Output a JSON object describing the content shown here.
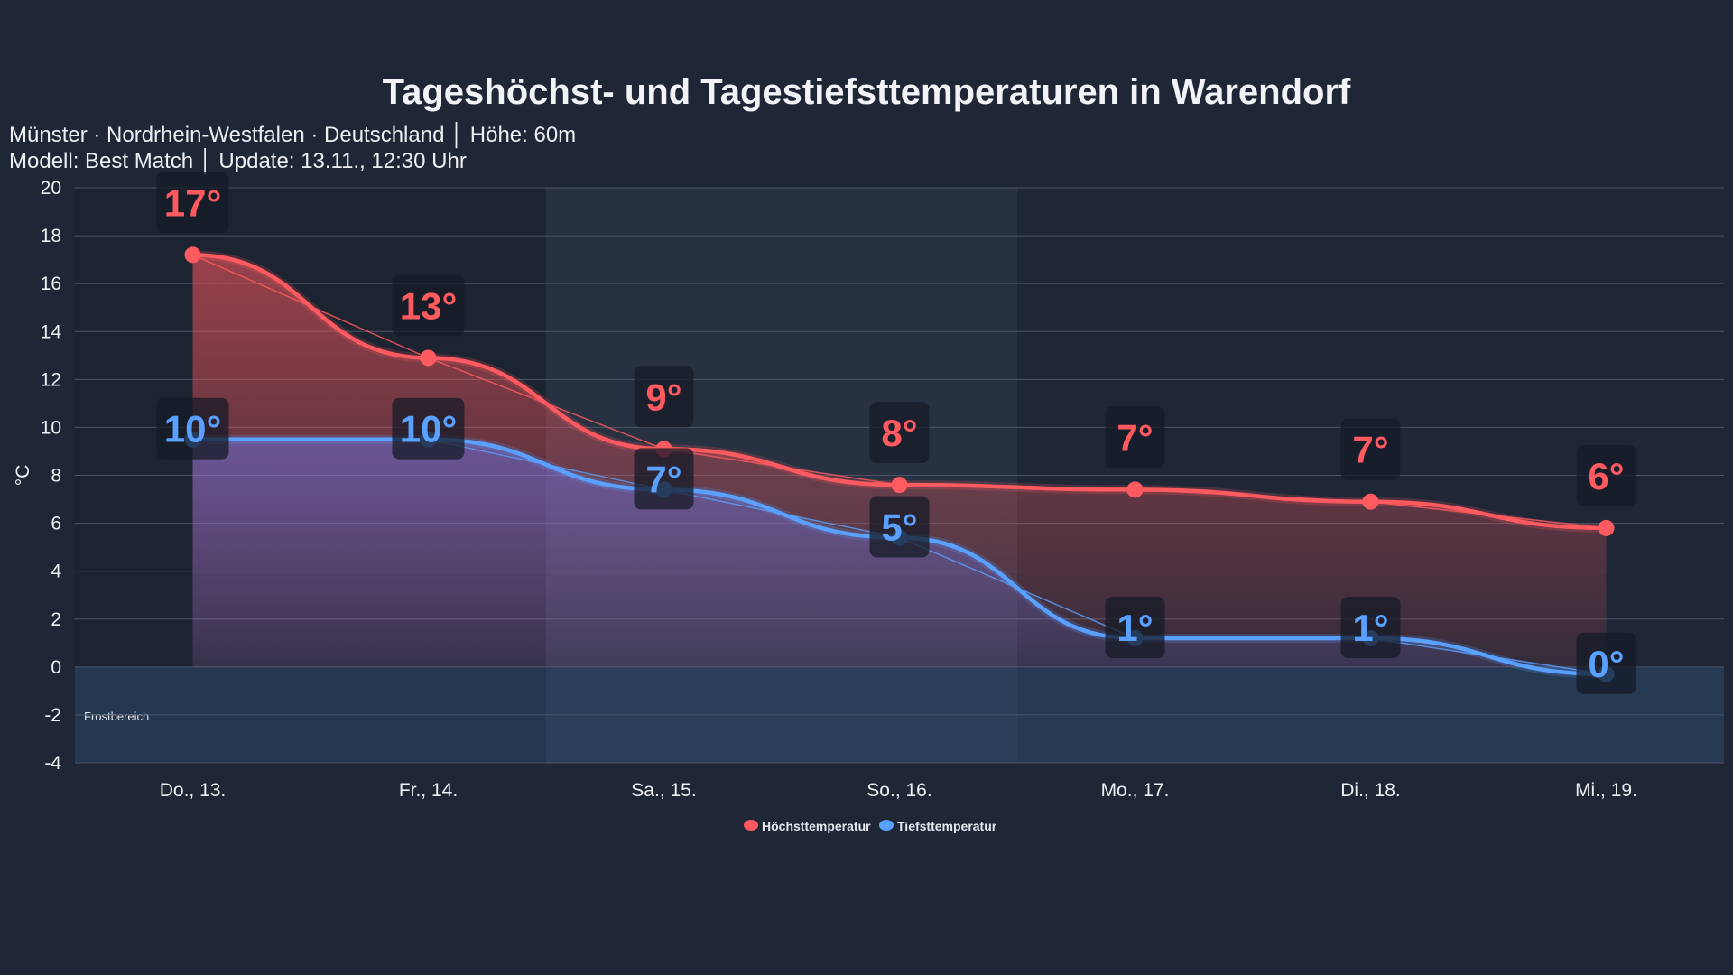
{
  "chart_data": {
    "type": "line",
    "title": "Tageshöchst- und Tagestiefsttemperaturen in Warendorf",
    "subtitle_lines": [
      "Münster · Nordrhein-Westfalen · Deutschland │ Höhe: 60m",
      "Modell: Best Match │ Update: 13.11., 12:30 Uhr"
    ],
    "ylabel": "°C",
    "xlabel": "",
    "ylim": [
      -4,
      20
    ],
    "yticks": [
      20,
      18,
      16,
      14,
      12,
      10,
      8,
      6,
      4,
      2,
      0,
      -2,
      -4
    ],
    "grid": true,
    "legend_position": "bottom",
    "categories": [
      "Do., 13.",
      "Fr., 14.",
      "Sa., 15.",
      "So., 16.",
      "Mo., 17.",
      "Di., 18.",
      "Mi., 19."
    ],
    "series": [
      {
        "name": "Höchsttemperatur",
        "color": "#ff5a5f",
        "values": [
          17.2,
          12.9,
          9.1,
          7.6,
          7.4,
          6.9,
          5.8
        ],
        "labels": [
          "17°",
          "13°",
          "9°",
          "8°",
          "7°",
          "7°",
          "6°"
        ]
      },
      {
        "name": "Tiefsttemperatur",
        "color": "#5aa0ff",
        "values": [
          9.5,
          9.5,
          7.4,
          5.4,
          1.2,
          1.2,
          -0.3
        ],
        "labels": [
          "10°",
          "10°",
          "7°",
          "5°",
          "1°",
          "1°",
          "0°"
        ]
      }
    ],
    "annotations": [
      {
        "text": "Frostbereich",
        "y_range": [
          -4,
          0
        ]
      }
    ]
  }
}
